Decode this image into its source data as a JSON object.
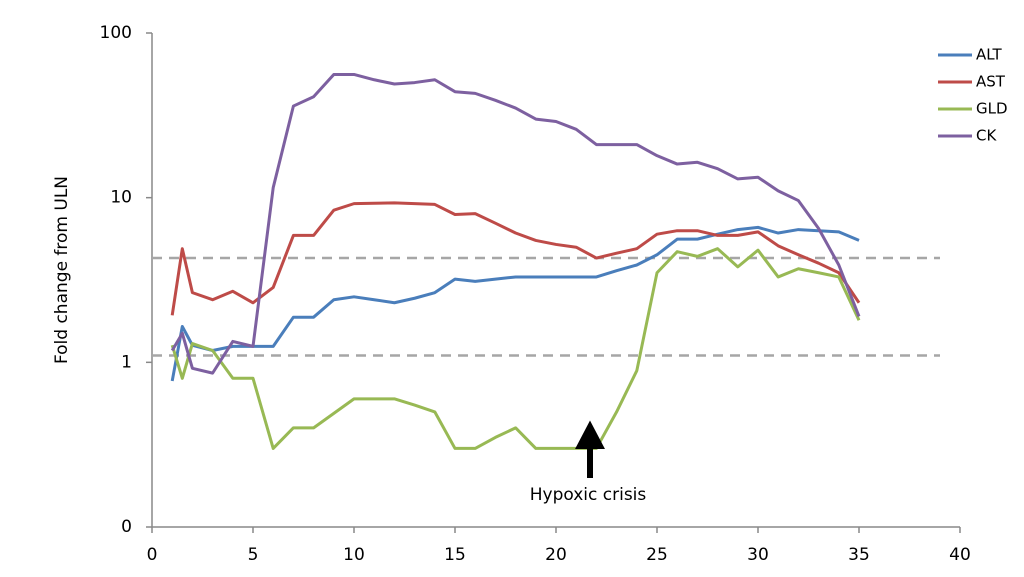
{
  "chart_data": {
    "type": "line",
    "y_label": "Fold change from ULN",
    "annotation": "Hypoxic crisis",
    "log_y": true,
    "legend": "top-right",
    "x": [
      1,
      1.5,
      2,
      3,
      4,
      5,
      6,
      7,
      8,
      9,
      10,
      11,
      12,
      13,
      14,
      15,
      16,
      17,
      18,
      19,
      20,
      21,
      22,
      23,
      24,
      25,
      26,
      27,
      28,
      29,
      30,
      31,
      32,
      33,
      34,
      35
    ],
    "series": [
      {
        "name": "ALT",
        "color": "#4a7ebb",
        "values": [
          0.77,
          1.65,
          1.27,
          1.18,
          1.25,
          1.25,
          1.25,
          1.88,
          1.88,
          2.4,
          2.5,
          2.4,
          2.3,
          2.45,
          2.65,
          3.2,
          3.1,
          3.2,
          3.3,
          3.3,
          3.3,
          3.3,
          3.3,
          3.6,
          3.9,
          4.5,
          5.6,
          5.6,
          6.0,
          6.4,
          6.6,
          6.1,
          6.4,
          6.3,
          6.2,
          5.5
        ]
      },
      {
        "name": "AST",
        "color": "#be4b48",
        "values": [
          1.93,
          4.9,
          2.65,
          2.4,
          2.7,
          2.3,
          2.85,
          5.9,
          5.9,
          8.4,
          9.2,
          9.25,
          9.3,
          9.2,
          9.1,
          7.9,
          8.0,
          7.0,
          6.1,
          5.5,
          5.2,
          5.0,
          4.3,
          4.6,
          4.9,
          6.0,
          6.3,
          6.3,
          5.9,
          5.9,
          6.2,
          5.1,
          4.5,
          4.0,
          3.5,
          2.3
        ]
      },
      {
        "name": "GLD",
        "color": "#98b954",
        "values": [
          1.27,
          0.8,
          1.3,
          1.18,
          0.8,
          0.8,
          0.3,
          0.4,
          0.4,
          0.49,
          0.6,
          0.6,
          0.6,
          0.55,
          0.5,
          0.3,
          0.3,
          0.35,
          0.4,
          0.3,
          0.3,
          0.3,
          0.3,
          0.5,
          0.89,
          3.5,
          4.7,
          4.4,
          4.9,
          3.8,
          4.8,
          3.3,
          3.7,
          3.5,
          3.3,
          1.8
        ]
      },
      {
        "name": "CK",
        "color": "#7d60a0",
        "values": [
          1.18,
          1.5,
          0.92,
          0.86,
          1.34,
          1.25,
          11.5,
          36,
          41,
          56,
          56,
          52,
          49,
          50,
          52,
          44,
          43,
          39,
          35,
          30,
          29,
          26,
          21,
          21,
          21,
          18,
          16,
          16.4,
          15,
          13,
          13.3,
          11,
          9.6,
          6.5,
          3.9,
          1.9
        ]
      }
    ],
    "hlines": [
      4.3,
      1.1
    ],
    "xlim": [
      0,
      40
    ],
    "xticks": [
      0,
      5,
      10,
      15,
      20,
      25,
      30,
      35,
      40
    ],
    "ylim": [
      0.1,
      100
    ],
    "yticks": [
      {
        "value": 0.1,
        "label": "0"
      },
      1,
      10,
      100
    ]
  }
}
